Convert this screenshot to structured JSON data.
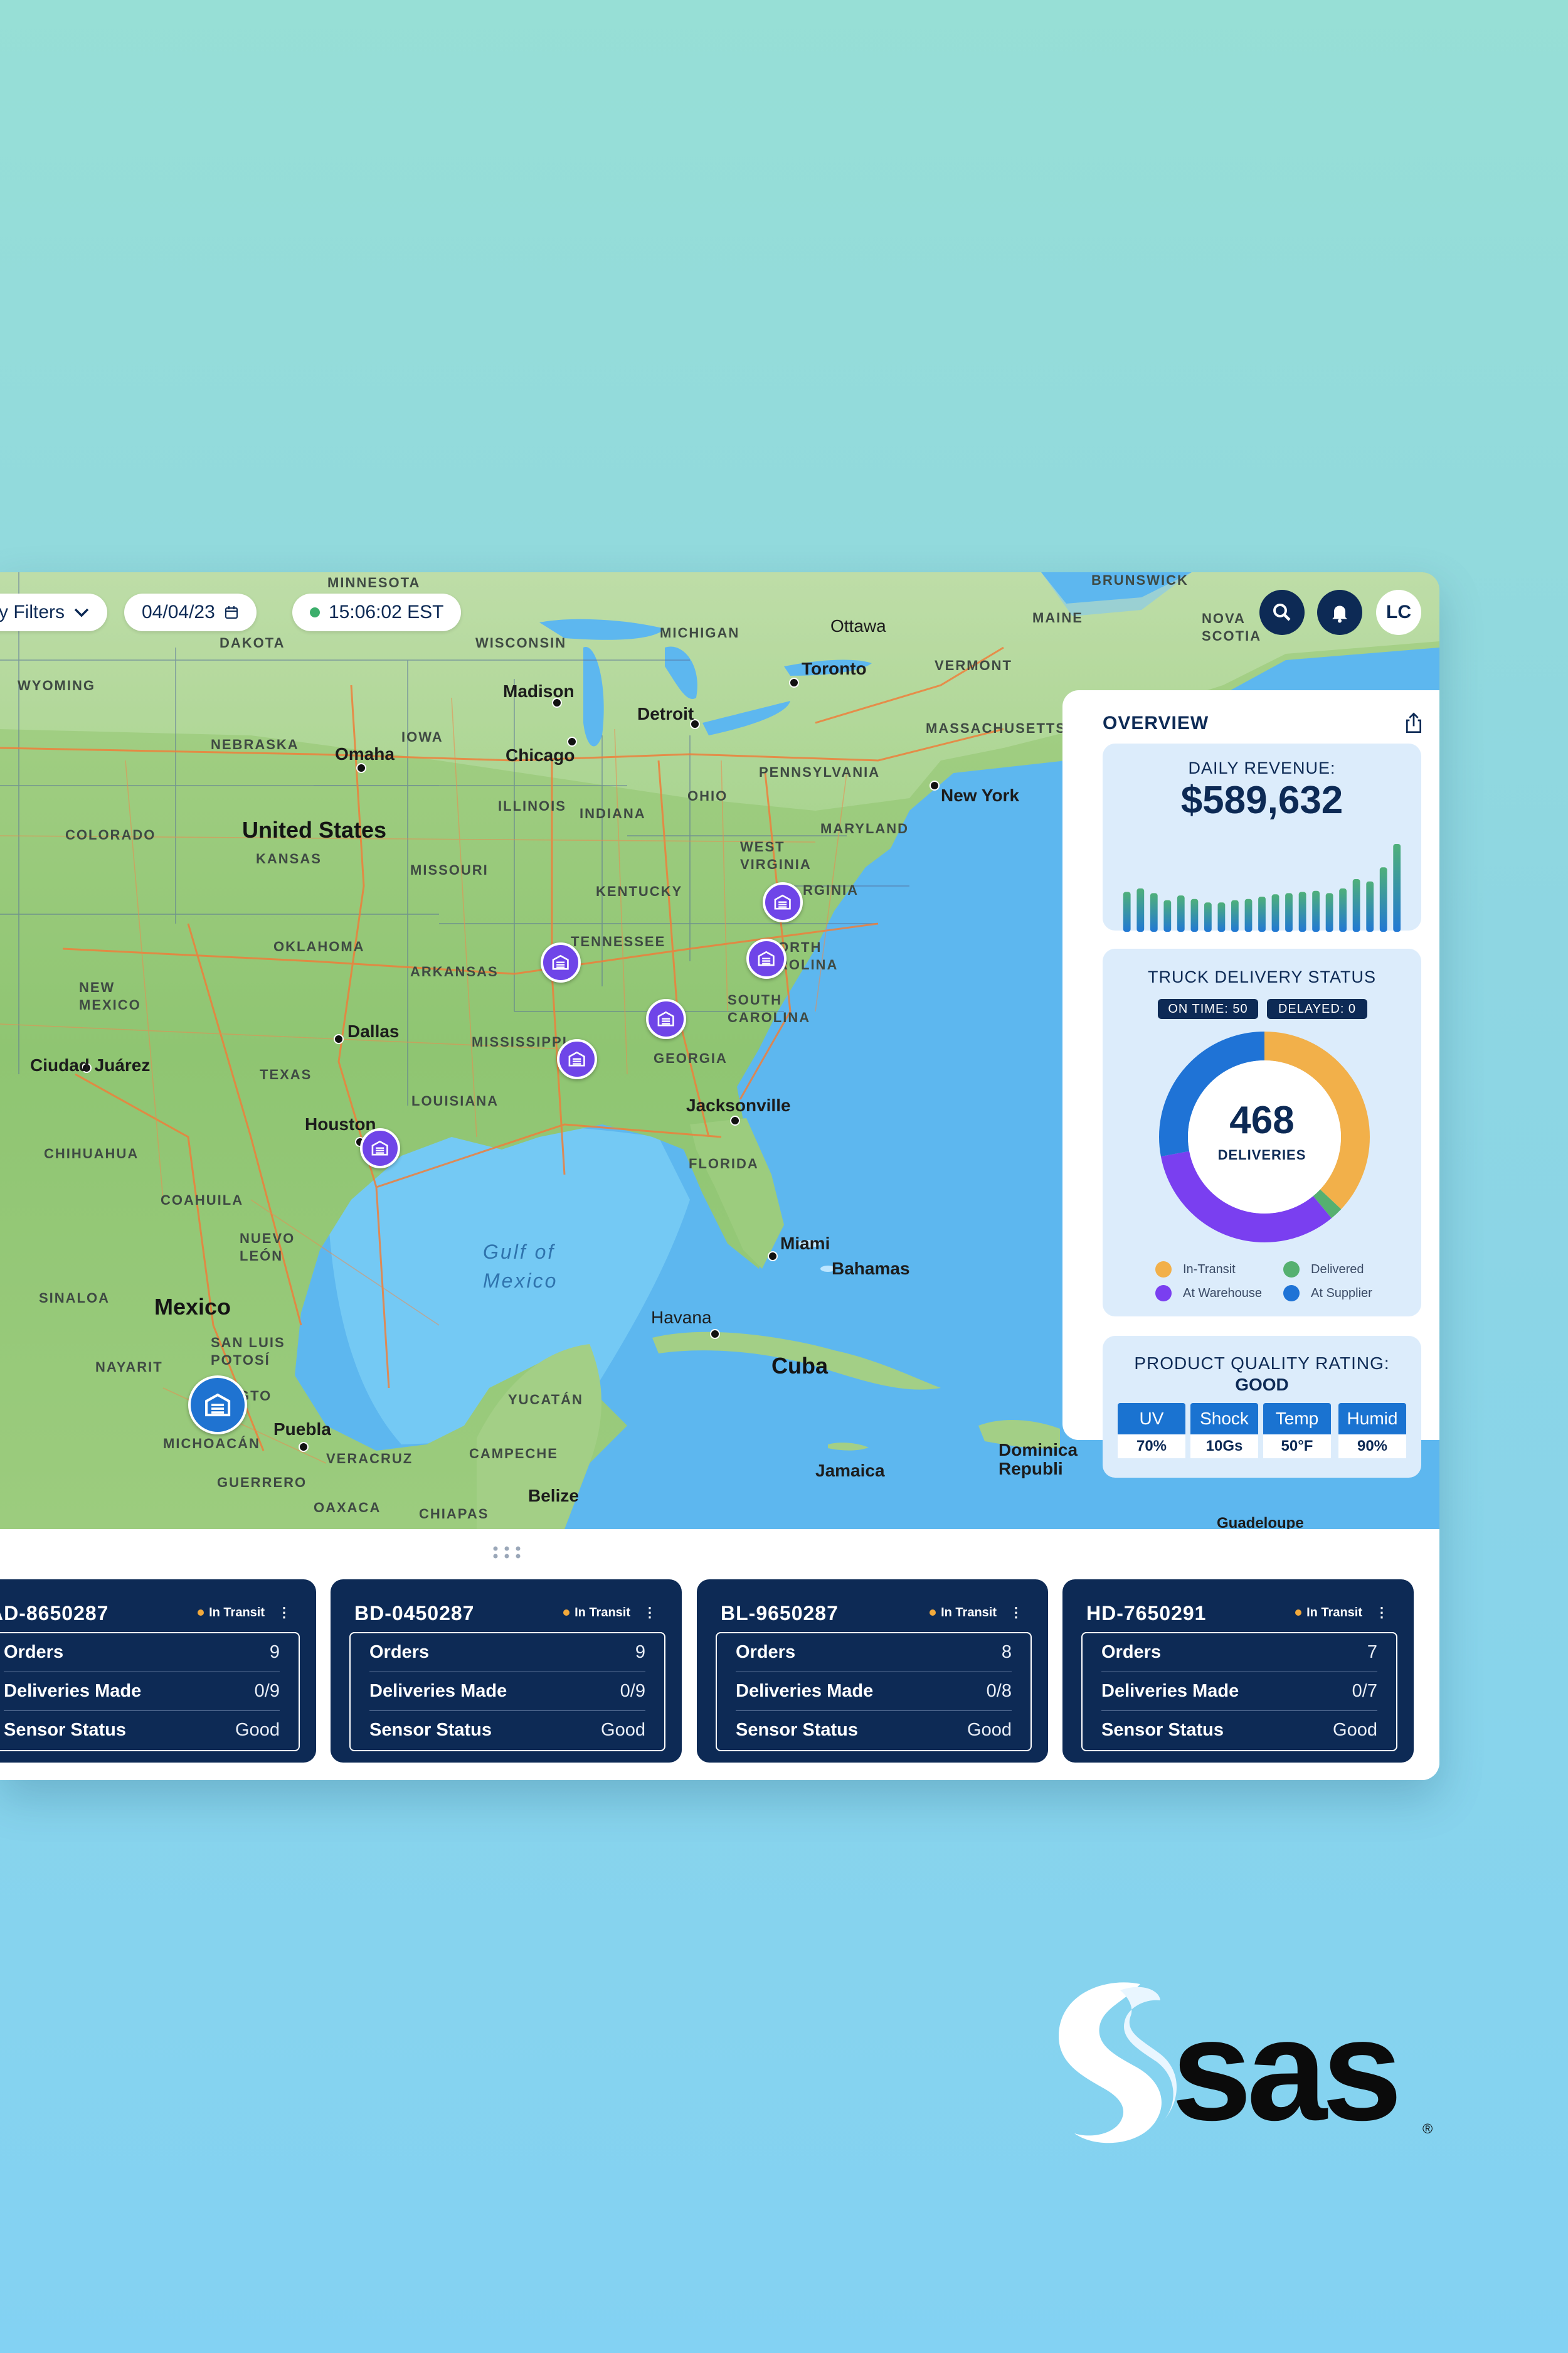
{
  "toolbar": {
    "filters_label": "y Filters",
    "date": "04/04/23",
    "time": "15:06:02 EST",
    "avatar_initials": "LC"
  },
  "map": {
    "labels": {
      "minnesota": "MINNESOTA",
      "dakota": "DAKOTA",
      "wisconsin": "WISCONSIN",
      "michigan": "MICHIGAN",
      "wyoming": "WYOMING",
      "nebraska": "NEBRASKA",
      "iowa": "IOWA",
      "colorado": "COLORADO",
      "kansas": "KANSAS",
      "missouri": "MISSOURI",
      "illinois": "ILLINOIS",
      "indiana": "INDIANA",
      "ohio": "OHIO",
      "pennsylvania": "PENNSYLVANIA",
      "maryland": "MARYLAND",
      "west_virginia": "WEST\nVIRGINIA",
      "virginia": "RGINIA",
      "kentucky": "KENTUCKY",
      "tennessee": "TENNESSEE",
      "north_carolina": "ORTH\nROLINA",
      "south_carolina": "SOUTH\nCAROLINA",
      "georgia": "GEORGIA",
      "oklahoma": "OKLAHOMA",
      "arkansas": "ARKANSAS",
      "mississippi": "MISSISSIPPI",
      "louisiana": "LOUISIANA",
      "texas": "TEXAS",
      "florida": "FLORIDA",
      "new_mexico": "NEW\nMEXICO",
      "chihuahua": "CHIHUAHUA",
      "coahuila": "COAHUILA",
      "nuevo_leon": "NUEVO\nLEÓN",
      "sinaloa": "SINALOA",
      "nayarit": "NAYARIT",
      "san_luis": "SAN LUIS\nPOTOSÍ",
      "michoacan": "MICHOACÁN",
      "guerrero": "GUERRERO",
      "veracruz": "VERACRUZ",
      "oaxaca": "OAXACA",
      "chiapas": "CHIAPAS",
      "campeche": "CAMPECHE",
      "yucatan": "YUCATÁN",
      "maine": "MAINE",
      "vermont": "VERMONT",
      "massachusetts": "MASSACHUSETTS",
      "nova_scotia": "NOVA\nSCOTIA",
      "brunswick": "BRUNSWICK",
      "ottawa": "Ottawa",
      "gto": "GTO",
      "united_states": "United States",
      "mexico": "Mexico",
      "cuba": "Cuba",
      "madison": "Madison",
      "chicago": "Chicago",
      "detroit": "Detroit",
      "toronto": "Toronto",
      "omaha": "Omaha",
      "new_york": "New York",
      "dallas": "Dallas",
      "houston": "Houston",
      "ciudad_juarez": "Ciudad Juárez",
      "jacksonville": "Jacksonville",
      "miami": "Miami",
      "bahamas": "Bahamas",
      "havana": "Havana",
      "puebla": "Puebla",
      "belize": "Belize",
      "jamaica": "Jamaica",
      "dominican": "Dominica\nRepubli",
      "guadeloupe": "Guadeloupe",
      "gulf": "Gulf of\nMexico"
    }
  },
  "overview": {
    "title": "OVERVIEW",
    "revenue": {
      "label": "DAILY REVENUE:",
      "value": "$589,632",
      "bar_values": [
        34,
        37,
        33,
        27,
        31,
        28,
        25,
        25,
        27,
        28,
        30,
        32,
        33,
        34,
        35,
        33,
        37,
        45,
        43,
        55,
        75
      ],
      "bar_color_top": "#4fb07a",
      "bar_color_bottom": "#2178d4"
    },
    "delivery": {
      "label": "TRUCK DELIVERY STATUS",
      "on_time": "ON TIME: 50",
      "delayed": "DELAYED: 0",
      "total": "468",
      "total_label": "DELIVERIES",
      "segments": [
        {
          "name": "In-Transit",
          "share": 0.37,
          "color": "#f2b04a"
        },
        {
          "name": "Delivered",
          "share": 0.02,
          "color": "#55b070"
        },
        {
          "name": "At Warehouse",
          "share": 0.33,
          "color": "#7a3ff0"
        },
        {
          "name": "At Supplier",
          "share": 0.28,
          "color": "#1f73d6"
        }
      ]
    },
    "quality": {
      "label": "PRODUCT QUALITY RATING:",
      "rating": "GOOD",
      "metrics": [
        {
          "name": "UV",
          "value": "70%"
        },
        {
          "name": "Shock",
          "value": "10Gs"
        },
        {
          "name": "Temp",
          "value": "50°F"
        },
        {
          "name": "Humid",
          "value": "90%"
        }
      ]
    }
  },
  "trucks": [
    {
      "id": "AD-8650287",
      "status": "In Transit",
      "orders": "9",
      "deliveries": "0/9",
      "sensor": "Good"
    },
    {
      "id": "BD-0450287",
      "status": "In Transit",
      "orders": "9",
      "deliveries": "0/9",
      "sensor": "Good"
    },
    {
      "id": "BL-9650287",
      "status": "In Transit",
      "orders": "8",
      "deliveries": "0/8",
      "sensor": "Good"
    },
    {
      "id": "HD-7650291",
      "status": "In Transit",
      "orders": "7",
      "deliveries": "0/7",
      "sensor": "Good"
    }
  ],
  "truck_labels": {
    "orders": "Orders",
    "deliveries": "Deliveries Made",
    "sensor": "Sensor Status"
  },
  "brand": {
    "name": "sas",
    "color": "#0b0b0b"
  }
}
